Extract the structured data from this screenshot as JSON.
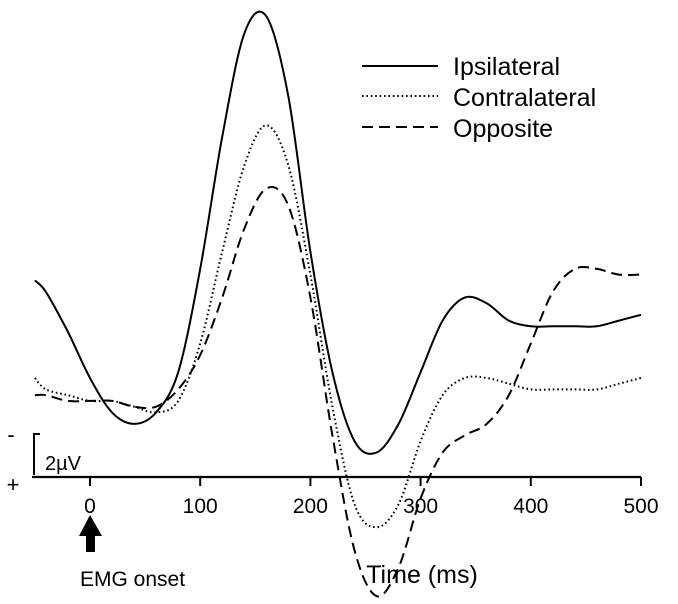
{
  "chart_data": {
    "type": "line",
    "title": "",
    "xlabel": "Time (ms)",
    "ylabel": "",
    "xlim": [
      -50,
      500
    ],
    "xticks": [
      0,
      100,
      200,
      300,
      400,
      500
    ],
    "y_units": "µV (negative plotted up)",
    "ylim": [
      -4.2,
      5.9
    ],
    "legend_position": "top-right",
    "scale_bar": {
      "label": "2µV",
      "value_uV": 2,
      "neg_sign": "-",
      "pos_sign": "+"
    },
    "marker": {
      "x": 0,
      "label": "EMG onset"
    },
    "series": [
      {
        "name": "Ipsilateral",
        "style": "solid",
        "x": [
          -50,
          -40,
          -20,
          0,
          20,
          40,
          60,
          80,
          100,
          120,
          140,
          160,
          180,
          200,
          220,
          240,
          260,
          280,
          300,
          320,
          340,
          360,
          380,
          400,
          420,
          440,
          460,
          480,
          500
        ],
        "y": [
          1.3,
          1.1,
          0.4,
          -0.4,
          -1.0,
          -1.2,
          -1.0,
          -0.3,
          1.5,
          3.8,
          5.6,
          5.9,
          4.5,
          1.8,
          -0.3,
          -1.5,
          -1.7,
          -1.2,
          -0.3,
          0.6,
          1.0,
          0.9,
          0.6,
          0.5,
          0.5,
          0.5,
          0.5,
          0.6,
          0.7
        ]
      },
      {
        "name": "Contralateral",
        "style": "dotted",
        "x": [
          -50,
          -40,
          -20,
          0,
          20,
          40,
          60,
          80,
          100,
          120,
          140,
          160,
          180,
          200,
          220,
          240,
          260,
          280,
          300,
          320,
          340,
          360,
          380,
          400,
          420,
          440,
          460,
          480,
          500
        ],
        "y": [
          -0.4,
          -0.6,
          -0.7,
          -0.8,
          -0.8,
          -0.9,
          -1.0,
          -0.8,
          0.2,
          1.8,
          3.3,
          4.0,
          3.3,
          1.4,
          -0.9,
          -2.6,
          -3.0,
          -2.6,
          -1.5,
          -0.7,
          -0.4,
          -0.4,
          -0.5,
          -0.6,
          -0.6,
          -0.6,
          -0.6,
          -0.5,
          -0.4
        ]
      },
      {
        "name": "Opposite",
        "style": "dashed",
        "x": [
          -50,
          -40,
          -20,
          0,
          20,
          40,
          60,
          80,
          100,
          120,
          140,
          160,
          180,
          200,
          220,
          240,
          260,
          280,
          300,
          320,
          340,
          360,
          380,
          400,
          420,
          440,
          460,
          480,
          500
        ],
        "y": [
          -0.7,
          -0.7,
          -0.8,
          -0.8,
          -0.8,
          -0.9,
          -0.9,
          -0.6,
          0.0,
          1.0,
          2.2,
          2.9,
          2.6,
          1.0,
          -1.4,
          -3.4,
          -4.2,
          -3.7,
          -2.5,
          -1.7,
          -1.4,
          -1.2,
          -0.7,
          0.2,
          1.1,
          1.5,
          1.5,
          1.4,
          1.4
        ]
      }
    ]
  }
}
